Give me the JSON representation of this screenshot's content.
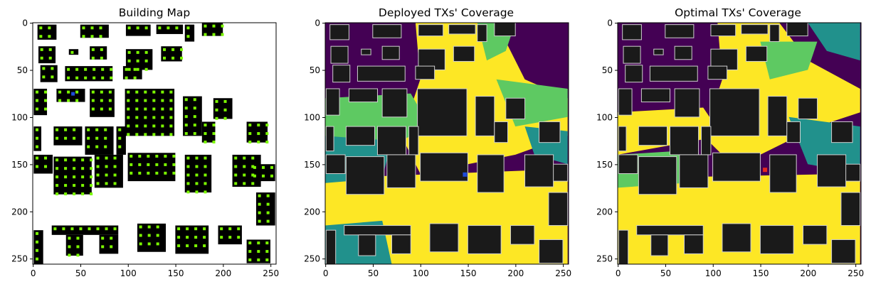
{
  "figure": {
    "background": "#ffffff"
  },
  "chart_data": [
    {
      "type": "heatmap",
      "title": "Building Map",
      "xlabel": "",
      "ylabel": "",
      "xlim": [
        0,
        255
      ],
      "ylim": [
        255,
        0
      ],
      "xticks": [
        0,
        50,
        100,
        150,
        200,
        250
      ],
      "yticks": [
        0,
        50,
        100,
        150,
        200,
        250
      ],
      "grid": false,
      "colors": {
        "background": "#ffffff",
        "building": "#000000",
        "candidate_tx": "#7cfc00",
        "deployed_tx": "#1e4bd8"
      },
      "deployed_tx": [
        [
          42,
          75
        ]
      ]
    },
    {
      "type": "heatmap",
      "title": "Deployed TXs' Coverage",
      "xlabel": "",
      "ylabel": "",
      "xlim": [
        0,
        255
      ],
      "ylim": [
        255,
        0
      ],
      "xticks": [
        0,
        50,
        100,
        150,
        200,
        250
      ],
      "yticks": [
        0,
        50,
        100,
        150,
        200,
        250
      ],
      "grid": false,
      "colormap": "viridis",
      "colors": {
        "no_coverage": "#440154",
        "low": "#21918c",
        "mid": "#5ec962",
        "high": "#fde725",
        "building": "#1a1a1a"
      },
      "tx_marker": [
        [
          147,
          161
        ]
      ],
      "tx_color": "#1e4bd8"
    },
    {
      "type": "heatmap",
      "title": "Optimal TXs' Coverage",
      "xlabel": "",
      "ylabel": "",
      "xlim": [
        0,
        255
      ],
      "ylim": [
        255,
        0
      ],
      "xticks": [
        0,
        50,
        100,
        150,
        200,
        250
      ],
      "yticks": [
        0,
        50,
        100,
        150,
        200,
        250
      ],
      "grid": false,
      "colormap": "viridis",
      "colors": {
        "no_coverage": "#440154",
        "low": "#21918c",
        "mid": "#5ec962",
        "high": "#fde725",
        "building": "#1a1a1a"
      },
      "tx_marker": [
        [
          155,
          156
        ]
      ],
      "tx_color": "#e8281e"
    }
  ]
}
